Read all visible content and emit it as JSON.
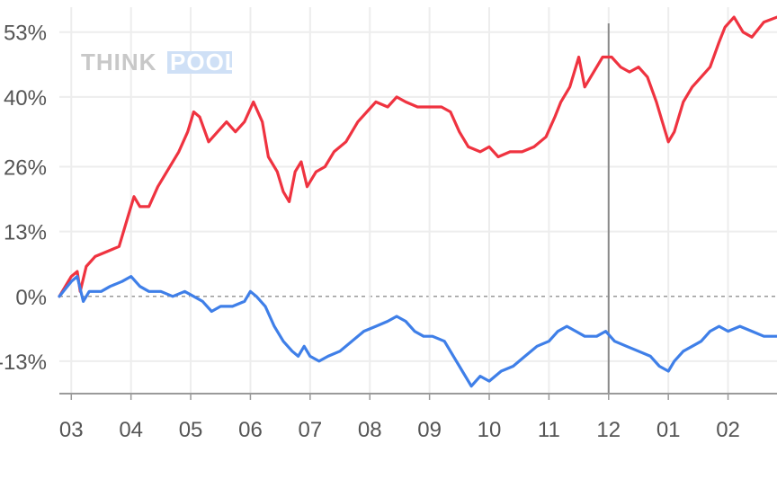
{
  "chart_data": {
    "type": "line",
    "watermark": {
      "part1": "THINK",
      "part2": "POOL"
    },
    "categories": [
      "03",
      "04",
      "05",
      "06",
      "07",
      "08",
      "09",
      "10",
      "11",
      "12",
      "01",
      "02"
    ],
    "y_ticks": [
      {
        "value": 53,
        "label": "53%"
      },
      {
        "value": 40,
        "label": "40%"
      },
      {
        "value": 26,
        "label": "26%"
      },
      {
        "value": 13,
        "label": "13%"
      },
      {
        "value": 0,
        "label": "0%"
      },
      {
        "value": -13,
        "label": "-13%"
      }
    ],
    "ylim": [
      -19.5,
      58
    ],
    "xlim": [
      -0.2,
      11.82
    ],
    "marker_x": 9.0,
    "grid": true,
    "series": [
      {
        "color": "#ef3340",
        "points": [
          [
            -0.2,
            0
          ],
          [
            0.0,
            4
          ],
          [
            0.1,
            5
          ],
          [
            0.15,
            1
          ],
          [
            0.25,
            6
          ],
          [
            0.4,
            8
          ],
          [
            0.6,
            9
          ],
          [
            0.8,
            10
          ],
          [
            0.95,
            16
          ],
          [
            1.05,
            20
          ],
          [
            1.15,
            18
          ],
          [
            1.3,
            18
          ],
          [
            1.45,
            22
          ],
          [
            1.6,
            25
          ],
          [
            1.8,
            29
          ],
          [
            1.95,
            33
          ],
          [
            2.05,
            37
          ],
          [
            2.15,
            36
          ],
          [
            2.3,
            31
          ],
          [
            2.45,
            33
          ],
          [
            2.6,
            35
          ],
          [
            2.75,
            33
          ],
          [
            2.9,
            35
          ],
          [
            3.05,
            39
          ],
          [
            3.2,
            35
          ],
          [
            3.3,
            28
          ],
          [
            3.45,
            25
          ],
          [
            3.55,
            21
          ],
          [
            3.65,
            19
          ],
          [
            3.75,
            25
          ],
          [
            3.85,
            27
          ],
          [
            3.95,
            22
          ],
          [
            4.1,
            25
          ],
          [
            4.25,
            26
          ],
          [
            4.4,
            29
          ],
          [
            4.6,
            31
          ],
          [
            4.8,
            35
          ],
          [
            4.95,
            37
          ],
          [
            5.1,
            39
          ],
          [
            5.3,
            38
          ],
          [
            5.45,
            40
          ],
          [
            5.6,
            39
          ],
          [
            5.8,
            38
          ],
          [
            6.0,
            38
          ],
          [
            6.2,
            38
          ],
          [
            6.35,
            37
          ],
          [
            6.5,
            33
          ],
          [
            6.65,
            30
          ],
          [
            6.85,
            29
          ],
          [
            7.0,
            30
          ],
          [
            7.15,
            28
          ],
          [
            7.35,
            29
          ],
          [
            7.55,
            29
          ],
          [
            7.75,
            30
          ],
          [
            7.95,
            32
          ],
          [
            8.1,
            36
          ],
          [
            8.2,
            39
          ],
          [
            8.35,
            42
          ],
          [
            8.5,
            48
          ],
          [
            8.6,
            42
          ],
          [
            8.75,
            45
          ],
          [
            8.9,
            48
          ],
          [
            9.05,
            48
          ],
          [
            9.2,
            46
          ],
          [
            9.35,
            45
          ],
          [
            9.5,
            46
          ],
          [
            9.65,
            44
          ],
          [
            9.8,
            39
          ],
          [
            9.9,
            35
          ],
          [
            10.0,
            31
          ],
          [
            10.1,
            33
          ],
          [
            10.25,
            39
          ],
          [
            10.4,
            42
          ],
          [
            10.55,
            44
          ],
          [
            10.7,
            46
          ],
          [
            10.85,
            51
          ],
          [
            10.95,
            54
          ],
          [
            11.1,
            56
          ],
          [
            11.25,
            53
          ],
          [
            11.4,
            52
          ],
          [
            11.6,
            55
          ],
          [
            11.82,
            56
          ]
        ]
      },
      {
        "color": "#3f7fe8",
        "points": [
          [
            -0.2,
            0
          ],
          [
            0.0,
            3
          ],
          [
            0.1,
            4
          ],
          [
            0.2,
            -1
          ],
          [
            0.3,
            1
          ],
          [
            0.5,
            1
          ],
          [
            0.65,
            2
          ],
          [
            0.85,
            3
          ],
          [
            1.0,
            4
          ],
          [
            1.15,
            2
          ],
          [
            1.3,
            1
          ],
          [
            1.5,
            1
          ],
          [
            1.7,
            0
          ],
          [
            1.9,
            1
          ],
          [
            2.05,
            0
          ],
          [
            2.2,
            -1
          ],
          [
            2.35,
            -3
          ],
          [
            2.5,
            -2
          ],
          [
            2.7,
            -2
          ],
          [
            2.9,
            -1
          ],
          [
            3.0,
            1
          ],
          [
            3.1,
            0
          ],
          [
            3.25,
            -2
          ],
          [
            3.4,
            -6
          ],
          [
            3.55,
            -9
          ],
          [
            3.7,
            -11
          ],
          [
            3.8,
            -12
          ],
          [
            3.9,
            -10
          ],
          [
            4.0,
            -12
          ],
          [
            4.15,
            -13
          ],
          [
            4.3,
            -12
          ],
          [
            4.5,
            -11
          ],
          [
            4.7,
            -9
          ],
          [
            4.9,
            -7
          ],
          [
            5.1,
            -6
          ],
          [
            5.3,
            -5
          ],
          [
            5.45,
            -4
          ],
          [
            5.6,
            -5
          ],
          [
            5.75,
            -7
          ],
          [
            5.9,
            -8
          ],
          [
            6.05,
            -8
          ],
          [
            6.25,
            -9
          ],
          [
            6.4,
            -12
          ],
          [
            6.55,
            -15
          ],
          [
            6.7,
            -18
          ],
          [
            6.85,
            -16
          ],
          [
            7.0,
            -17
          ],
          [
            7.2,
            -15
          ],
          [
            7.4,
            -14
          ],
          [
            7.6,
            -12
          ],
          [
            7.8,
            -10
          ],
          [
            8.0,
            -9
          ],
          [
            8.15,
            -7
          ],
          [
            8.3,
            -6
          ],
          [
            8.45,
            -7
          ],
          [
            8.6,
            -8
          ],
          [
            8.8,
            -8
          ],
          [
            8.95,
            -7
          ],
          [
            9.1,
            -9
          ],
          [
            9.3,
            -10
          ],
          [
            9.5,
            -11
          ],
          [
            9.7,
            -12
          ],
          [
            9.85,
            -14
          ],
          [
            10.0,
            -15
          ],
          [
            10.1,
            -13
          ],
          [
            10.25,
            -11
          ],
          [
            10.4,
            -10
          ],
          [
            10.55,
            -9
          ],
          [
            10.7,
            -7
          ],
          [
            10.85,
            -6
          ],
          [
            11.0,
            -7
          ],
          [
            11.2,
            -6
          ],
          [
            11.4,
            -7
          ],
          [
            11.6,
            -8
          ],
          [
            11.82,
            -8
          ]
        ]
      }
    ]
  }
}
